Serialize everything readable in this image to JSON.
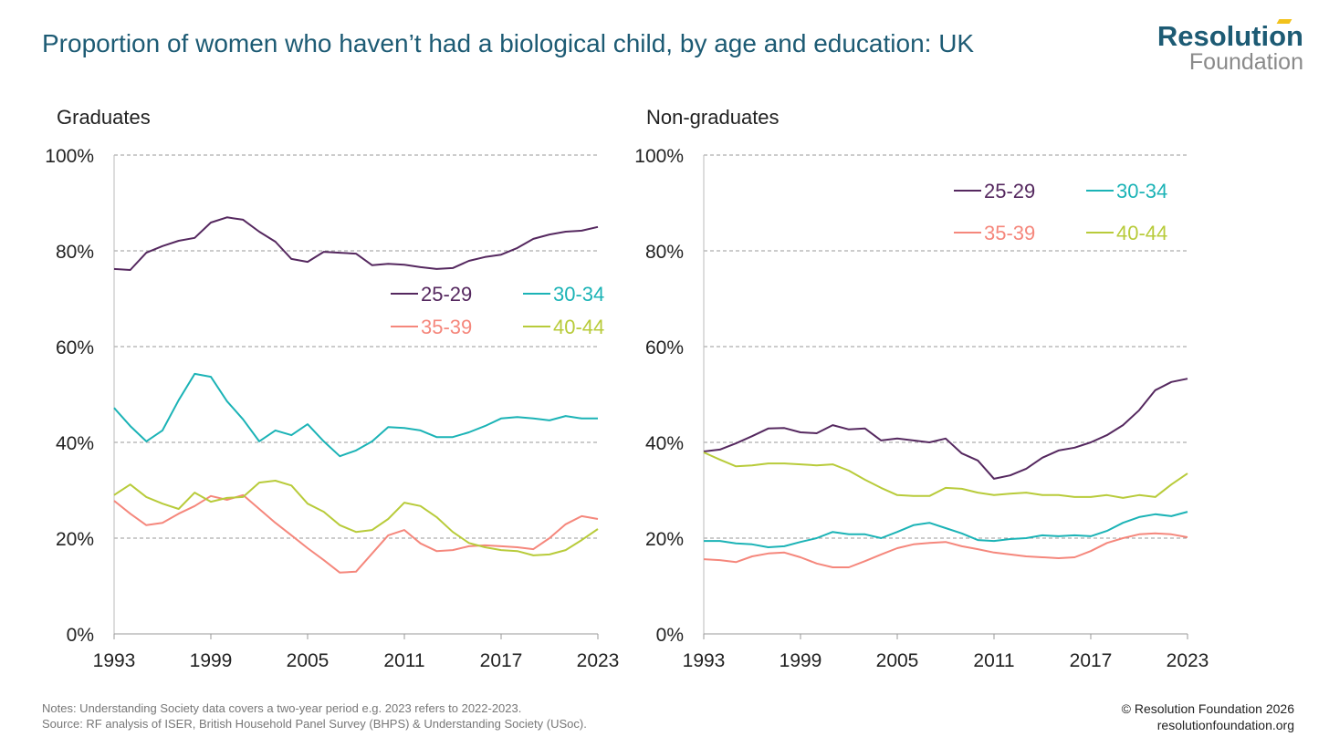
{
  "header": {
    "title": "Proportion of women who haven’t had a biological child, by age and education: UK"
  },
  "logo": {
    "line1": "Resolution",
    "line2": "Foundation"
  },
  "footer": {
    "notes": "Notes: Understanding Society data covers a two-year period e.g. 2023 refers to 2022-2023.",
    "source": "Source: RF analysis of ISER, British Household Panel Survey (BHPS) & Understanding Society (USoc).",
    "copyright": "© Resolution Foundation 2026",
    "url": "resolutionfoundation.org"
  },
  "colors": {
    "25-29": "#55285f",
    "30-34": "#1bb3b6",
    "35-39": "#f5877c",
    "40-44": "#b8cb3a",
    "title": "#1d5b74"
  },
  "chart_data": [
    {
      "type": "line",
      "title": "Graduates",
      "xlabel": "",
      "ylabel": "",
      "ylim": [
        0,
        100
      ],
      "yticks": [
        "0%",
        "20%",
        "40%",
        "60%",
        "80%",
        "100%"
      ],
      "ytick_values": [
        0,
        20,
        40,
        60,
        80,
        100
      ],
      "xlim": [
        1993,
        2023
      ],
      "xticks": [
        1993,
        1999,
        2005,
        2011,
        2017,
        2023
      ],
      "legend_placement": "center-right",
      "grid": true,
      "x_start": 1993,
      "series": [
        {
          "name": "25-29",
          "values": [
            76.2,
            76,
            79.6,
            81,
            82.1,
            82.7,
            85.9,
            87,
            86.5,
            84,
            81.9,
            78.3,
            77.7,
            79.8,
            79.6,
            79.4,
            77,
            77.3,
            77.1,
            76.6,
            76.2,
            76.4,
            77.9,
            78.7,
            79.2,
            80.6,
            82.5,
            83.4,
            84,
            84.2,
            85
          ]
        },
        {
          "name": "30-34",
          "values": [
            47.2,
            43.4,
            40.2,
            42.5,
            48.8,
            54.3,
            53.7,
            48.6,
            44.8,
            40.2,
            42.5,
            41.5,
            43.8,
            40.2,
            37.1,
            38.3,
            40.2,
            43.2,
            43,
            42.5,
            41.1,
            41.1,
            42.1,
            43.4,
            45,
            45.3,
            45,
            44.6,
            45.5,
            45,
            45
          ]
        },
        {
          "name": "35-39",
          "values": [
            27.8,
            25.1,
            22.7,
            23.2,
            25.1,
            26.7,
            28.8,
            28,
            29,
            26.1,
            23.2,
            20.6,
            17.9,
            15.4,
            12.8,
            13,
            16.8,
            20.6,
            21.7,
            18.9,
            17.3,
            17.5,
            18.3,
            18.5,
            18.3,
            18.1,
            17.7,
            20,
            22.9,
            24.6,
            24
          ]
        },
        {
          "name": "40-44",
          "values": [
            29,
            31.2,
            28.6,
            27.2,
            26.1,
            29.5,
            27.6,
            28.4,
            28.6,
            31.6,
            32,
            31,
            27.2,
            25.5,
            22.7,
            21.3,
            21.7,
            24,
            27.4,
            26.7,
            24.4,
            21.3,
            19,
            18.1,
            17.5,
            17.3,
            16.4,
            16.6,
            17.5,
            19.6,
            21.9
          ]
        }
      ]
    },
    {
      "type": "line",
      "title": "Non-graduates",
      "xlabel": "",
      "ylabel": "",
      "ylim": [
        0,
        100
      ],
      "yticks": [
        "0%",
        "20%",
        "40%",
        "60%",
        "80%",
        "100%"
      ],
      "ytick_values": [
        0,
        20,
        40,
        60,
        80,
        100
      ],
      "xlim": [
        1993,
        2023
      ],
      "xticks": [
        1993,
        1999,
        2005,
        2011,
        2017,
        2023
      ],
      "legend_placement": "top-right",
      "grid": true,
      "x_start": 1993,
      "series": [
        {
          "name": "25-29",
          "values": [
            38.1,
            38.5,
            39.8,
            41.3,
            42.9,
            43,
            42.1,
            41.9,
            43.6,
            42.7,
            42.9,
            40.4,
            40.8,
            40.4,
            40,
            40.8,
            37.7,
            36.2,
            32.4,
            33.1,
            34.5,
            36.8,
            38.3,
            38.9,
            40,
            41.5,
            43.6,
            46.7,
            50.9,
            52.6,
            53.3
          ]
        },
        {
          "name": "30-34",
          "values": [
            19.4,
            19.4,
            18.9,
            18.7,
            18.1,
            18.3,
            19.2,
            20,
            21.3,
            20.8,
            20.8,
            20,
            21.3,
            22.7,
            23.2,
            22.1,
            21,
            19.6,
            19.4,
            19.8,
            20,
            20.6,
            20.4,
            20.6,
            20.4,
            21.5,
            23.2,
            24.4,
            25,
            24.6,
            25.5
          ]
        },
        {
          "name": "35-39",
          "values": [
            15.6,
            15.4,
            15,
            16.2,
            16.8,
            17,
            16,
            14.7,
            13.9,
            13.9,
            15.2,
            16.6,
            17.9,
            18.7,
            19,
            19.2,
            18.3,
            17.7,
            17,
            16.6,
            16.2,
            16,
            15.8,
            16,
            17.3,
            19,
            20,
            20.8,
            21,
            20.8,
            20.2
          ]
        },
        {
          "name": "40-44",
          "values": [
            37.9,
            36.4,
            35,
            35.2,
            35.6,
            35.6,
            35.4,
            35.2,
            35.4,
            34.1,
            32.2,
            30.5,
            29,
            28.8,
            28.8,
            30.5,
            30.3,
            29.5,
            29,
            29.3,
            29.5,
            29,
            29,
            28.6,
            28.6,
            29,
            28.4,
            29,
            28.6,
            31.2,
            33.5
          ]
        }
      ]
    }
  ]
}
